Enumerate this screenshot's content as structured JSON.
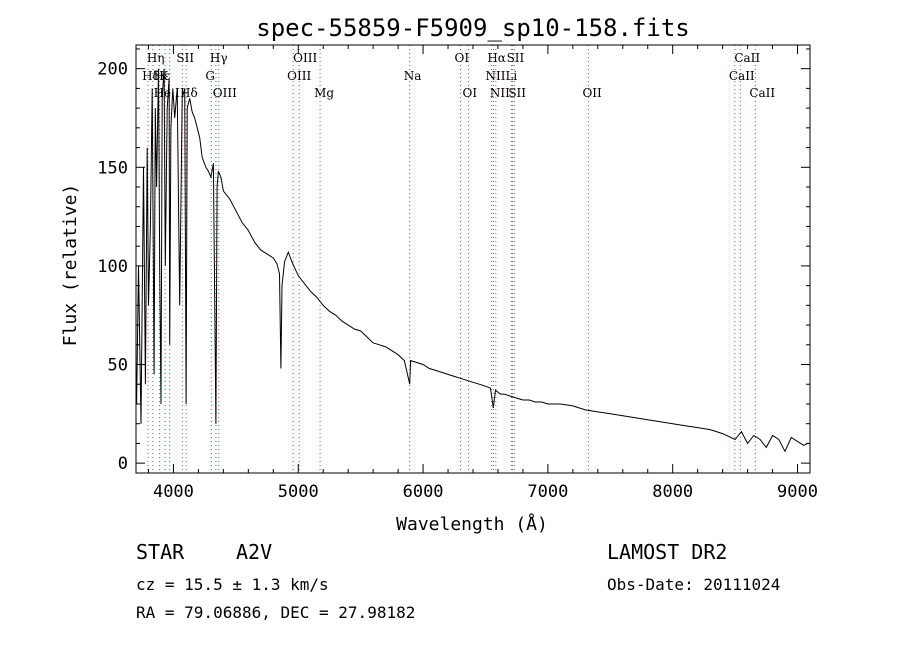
{
  "chart_data": {
    "type": "line",
    "title": "spec-55859-F5909_sp10-158.fits",
    "xlabel": "Wavelength (Å)",
    "ylabel": "Flux (relative)",
    "xlim": [
      3700,
      9100
    ],
    "ylim": [
      -5,
      212
    ],
    "xticks": [
      4000,
      5000,
      6000,
      7000,
      8000,
      9000
    ],
    "yticks": [
      0,
      50,
      100,
      150,
      200
    ],
    "grid": false,
    "series": [
      {
        "x": [
          3705,
          3720,
          3740,
          3760,
          3775,
          3790,
          3800,
          3815,
          3830,
          3845,
          3855,
          3865,
          3880,
          3890,
          3900,
          3910,
          3925,
          3935,
          3950,
          3965,
          3970,
          3980,
          3995,
          4010,
          4030,
          4050,
          4070,
          4090,
          4101,
          4110,
          4130,
          4150,
          4170,
          4190,
          4210,
          4230,
          4260,
          4280,
          4300,
          4320,
          4340,
          4350,
          4360,
          4380,
          4400,
          4450,
          4500,
          4550,
          4600,
          4650,
          4700,
          4750,
          4800,
          4830,
          4850,
          4861,
          4870,
          4890,
          4920,
          4950,
          5000,
          5050,
          5100,
          5150,
          5200,
          5250,
          5300,
          5350,
          5400,
          5450,
          5500,
          5550,
          5600,
          5650,
          5700,
          5750,
          5800,
          5850,
          5893,
          5900,
          5950,
          6000,
          6050,
          6100,
          6150,
          6200,
          6250,
          6300,
          6350,
          6400,
          6450,
          6500,
          6540,
          6563,
          6580,
          6620,
          6650,
          6700,
          6750,
          6800,
          6850,
          6900,
          6950,
          7000,
          7100,
          7200,
          7300,
          7400,
          7500,
          7600,
          7700,
          7800,
          7900,
          8000,
          8100,
          8200,
          8300,
          8400,
          8500,
          8550,
          8600,
          8650,
          8700,
          8750,
          8800,
          8850,
          8900,
          8950,
          9000,
          9050,
          9080
        ],
        "y": [
          30,
          100,
          20,
          150,
          40,
          160,
          80,
          120,
          190,
          45,
          180,
          140,
          200,
          100,
          30,
          185,
          200,
          100,
          180,
          195,
          60,
          170,
          190,
          175,
          190,
          80,
          185,
          190,
          30,
          180,
          185,
          178,
          175,
          170,
          165,
          155,
          150,
          148,
          145,
          152,
          20,
          140,
          148,
          145,
          138,
          134,
          128,
          122,
          118,
          112,
          108,
          106,
          104,
          101,
          96,
          48,
          90,
          102,
          107,
          102,
          95,
          91,
          87,
          84,
          80,
          77,
          75,
          72,
          70,
          68,
          67,
          64,
          61,
          60,
          59,
          57,
          55,
          52,
          40,
          52,
          51,
          50,
          48,
          47,
          46,
          45,
          44,
          43,
          42,
          41,
          40,
          39,
          38,
          28,
          37,
          35,
          35,
          34,
          33,
          32,
          32,
          31,
          31,
          30,
          30,
          29,
          27,
          26,
          25,
          24,
          23,
          22,
          21,
          20,
          19,
          18,
          17,
          15,
          12,
          16,
          10,
          14,
          12,
          8,
          14,
          12,
          6,
          13,
          11,
          9,
          10
        ]
      }
    ],
    "line_labels": [
      {
        "name": "Hη",
        "wl": 3835,
        "row": 0
      },
      {
        "name": "Hε",
        "wl": 3889,
        "row": 1
      },
      {
        "name": "K",
        "wl": 3933,
        "row": 1
      },
      {
        "name": "SII",
        "wl": 4072,
        "row": 0
      },
      {
        "name": "Hγ",
        "wl": 4340,
        "row": 0
      },
      {
        "name": "OIII",
        "wl": 5007,
        "row": 0
      },
      {
        "name": "OI",
        "wl": 6300,
        "row": 0
      },
      {
        "name": "Hα",
        "wl": 6563,
        "row": 0
      },
      {
        "name": "SII",
        "wl": 6717,
        "row": 0
      },
      {
        "name": "CaII",
        "wl": 8542,
        "row": 0
      },
      {
        "name": "Hδ",
        "wl": 3797,
        "row": 1
      },
      {
        "name": "G",
        "wl": 4304,
        "row": 1
      },
      {
        "name": "OIII",
        "wl": 4959,
        "row": 1
      },
      {
        "name": "Na",
        "wl": 5893,
        "row": 1
      },
      {
        "name": "NII",
        "wl": 6548,
        "row": 1
      },
      {
        "name": "Li",
        "wl": 6708,
        "row": 1
      },
      {
        "name": "CaII",
        "wl": 8498,
        "row": 1
      },
      {
        "name": "He I",
        "wl": 3889,
        "row": 2
      },
      {
        "name": "Hδ",
        "wl": 4101,
        "row": 2
      },
      {
        "name": "OIII",
        "wl": 4363,
        "row": 2
      },
      {
        "name": "Mg",
        "wl": 5175,
        "row": 2
      },
      {
        "name": "OI",
        "wl": 6364,
        "row": 2
      },
      {
        "name": "NII",
        "wl": 6583,
        "row": 2
      },
      {
        "name": "SII",
        "wl": 6731,
        "row": 2
      },
      {
        "name": "OII",
        "wl": 7325,
        "row": 2
      },
      {
        "name": "CaII",
        "wl": 8662,
        "row": 2
      }
    ],
    "line_positions": [
      3797,
      3835,
      3889,
      3933,
      3970,
      4072,
      4101,
      4304,
      4340,
      4363,
      4959,
      5007,
      5175,
      5893,
      6300,
      6364,
      6548,
      6563,
      6583,
      6708,
      6717,
      6731,
      7325,
      8498,
      8542,
      8662
    ]
  },
  "info": {
    "object_class": "STAR",
    "subclass": "A2V",
    "survey": "LAMOST DR2",
    "cz": "cz = 15.5 ± 1.3 km/s",
    "obs_date": "Obs-Date: 20111024",
    "coords": "RA =  79.06886, DEC =  27.98182"
  }
}
